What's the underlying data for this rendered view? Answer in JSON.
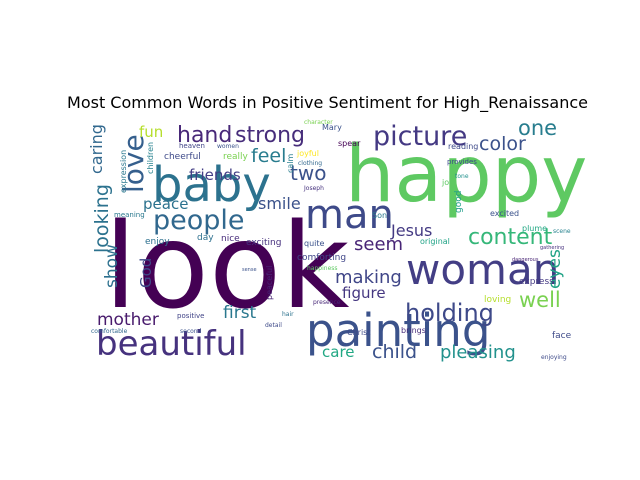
{
  "chart_data": {
    "type": "wordcloud",
    "title": "Most Common Words in Positive Sentiment for High_Renaissance",
    "background": "#ffffff",
    "colormap": "viridis",
    "words": [
      {
        "text": "look",
        "weight": 1.0,
        "color": "#440154"
      },
      {
        "text": "happy",
        "weight": 0.82,
        "color": "#5ec962"
      },
      {
        "text": "painting",
        "weight": 0.6,
        "color": "#3b528b"
      },
      {
        "text": "woman",
        "weight": 0.5,
        "color": "#433e85"
      },
      {
        "text": "baby",
        "weight": 0.5,
        "color": "#2c728e"
      },
      {
        "text": "beautiful",
        "weight": 0.45,
        "color": "#46327e"
      },
      {
        "text": "man",
        "weight": 0.42,
        "color": "#3e4a89"
      },
      {
        "text": "people",
        "weight": 0.33,
        "color": "#31688e"
      },
      {
        "text": "love",
        "weight": 0.3,
        "color": "#355f8d"
      },
      {
        "text": "picture",
        "weight": 0.3,
        "color": "#443983"
      },
      {
        "text": "content",
        "weight": 0.26,
        "color": "#35b779"
      },
      {
        "text": "holding",
        "weight": 0.25,
        "color": "#3e4989"
      },
      {
        "text": "hand",
        "weight": 0.24,
        "color": "#482878"
      },
      {
        "text": "strong",
        "weight": 0.24,
        "color": "#472d7b"
      },
      {
        "text": "one",
        "weight": 0.23,
        "color": "#287d8e"
      },
      {
        "text": "two",
        "weight": 0.21,
        "color": "#3b528b"
      },
      {
        "text": "feel",
        "weight": 0.2,
        "color": "#287c8e"
      },
      {
        "text": "well",
        "weight": 0.2,
        "color": "#7ad151"
      },
      {
        "text": "color",
        "weight": 0.2,
        "color": "#3b528b"
      },
      {
        "text": "looking",
        "weight": 0.2,
        "color": "#2c728e"
      },
      {
        "text": "child",
        "weight": 0.2,
        "color": "#3b528b"
      },
      {
        "text": "mother",
        "weight": 0.18,
        "color": "#481a6c"
      },
      {
        "text": "making",
        "weight": 0.18,
        "color": "#404688"
      },
      {
        "text": "seem",
        "weight": 0.18,
        "color": "#482576"
      },
      {
        "text": "pleasing",
        "weight": 0.18,
        "color": "#21918c"
      },
      {
        "text": "first",
        "weight": 0.17,
        "color": "#2a788e"
      },
      {
        "text": "figure",
        "weight": 0.16,
        "color": "#453781"
      },
      {
        "text": "show",
        "weight": 0.16,
        "color": "#2d708e"
      },
      {
        "text": "smile",
        "weight": 0.16,
        "color": "#3b528b"
      },
      {
        "text": "friends",
        "weight": 0.15,
        "color": "#433e85"
      },
      {
        "text": "Jesus",
        "weight": 0.15,
        "color": "#443a83"
      },
      {
        "text": "eyes",
        "weight": 0.15,
        "color": "#20a386"
      },
      {
        "text": "caring",
        "weight": 0.14,
        "color": "#31688e"
      },
      {
        "text": "God",
        "weight": 0.14,
        "color": "#3e4a89"
      },
      {
        "text": "fun",
        "weight": 0.14,
        "color": "#b5de2b"
      },
      {
        "text": "peace",
        "weight": 0.13,
        "color": "#2c728e"
      },
      {
        "text": "care",
        "weight": 0.13,
        "color": "#22a884"
      },
      {
        "text": "love",
        "weight": 0.0,
        "color": "#355f8d",
        "hidden": true
      },
      {
        "text": "comforting",
        "weight": 0.09,
        "color": "#404688"
      },
      {
        "text": "peaceful",
        "weight": 0.08,
        "color": "#482475"
      },
      {
        "text": "exciting",
        "weight": 0.08,
        "color": "#46307e"
      },
      {
        "text": "nice",
        "weight": 0.08,
        "color": "#472c7a"
      },
      {
        "text": "day",
        "weight": 0.08,
        "color": "#2d708e"
      },
      {
        "text": "quite",
        "weight": 0.07,
        "color": "#3b528b"
      },
      {
        "text": "calm",
        "weight": 0.07,
        "color": "#287d8e"
      },
      {
        "text": "good",
        "weight": 0.07,
        "color": "#1f9e89"
      },
      {
        "text": "joy",
        "weight": 0.07,
        "color": "#5ec962"
      },
      {
        "text": "loving",
        "weight": 0.07,
        "color": "#b5de2b"
      },
      {
        "text": "express",
        "weight": 0.07,
        "color": "#443983"
      },
      {
        "text": "face",
        "weight": 0.07,
        "color": "#3e4a89"
      },
      {
        "text": "enjoy",
        "weight": 0.07,
        "color": "#2d708e"
      },
      {
        "text": "Son",
        "weight": 0.06,
        "color": "#2a788e"
      },
      {
        "text": "excited",
        "weight": 0.06,
        "color": "#3b528b"
      },
      {
        "text": "original",
        "weight": 0.06,
        "color": "#20a386"
      },
      {
        "text": "cheerful",
        "weight": 0.06,
        "color": "#3e4a89"
      },
      {
        "text": "heaven",
        "weight": 0.06,
        "color": "#414487"
      },
      {
        "text": "children",
        "weight": 0.06,
        "color": "#26828e"
      },
      {
        "text": "expression",
        "weight": 0.06,
        "color": "#2a788e"
      },
      {
        "text": "really",
        "weight": 0.06,
        "color": "#7ad151"
      },
      {
        "text": "Mary",
        "weight": 0.06,
        "color": "#3b528b"
      },
      {
        "text": "joyful",
        "weight": 0.06,
        "color": "#fde725"
      },
      {
        "text": "reading",
        "weight": 0.06,
        "color": "#3e4a89"
      },
      {
        "text": "spear",
        "weight": 0.06,
        "color": "#440154"
      },
      {
        "text": "Christ",
        "weight": 0.05,
        "color": "#3e4989"
      },
      {
        "text": "brings",
        "weight": 0.05,
        "color": "#472d7b"
      },
      {
        "text": "plume",
        "weight": 0.05,
        "color": "#22a884"
      },
      {
        "text": "positive",
        "weight": 0.05,
        "color": "#414487"
      },
      {
        "text": "meaning",
        "weight": 0.05,
        "color": "#2a788e"
      },
      {
        "text": "provides",
        "weight": 0.05,
        "color": "#3e4a89"
      },
      {
        "text": "happiness",
        "weight": 0.04,
        "color": "#5ec962"
      },
      {
        "text": "presence",
        "weight": 0.04,
        "color": "#482878"
      },
      {
        "text": "tone",
        "weight": 0.04,
        "color": "#21918c"
      },
      {
        "text": "Joseph",
        "weight": 0.04,
        "color": "#46327e"
      },
      {
        "text": "women",
        "weight": 0.04,
        "color": "#3b528b"
      },
      {
        "text": "clothing",
        "weight": 0.04,
        "color": "#31688e"
      },
      {
        "text": "character",
        "weight": 0.04,
        "color": "#7ad151"
      },
      {
        "text": "comfortable",
        "weight": 0.04,
        "color": "#31688e"
      },
      {
        "text": "scene",
        "weight": 0.04,
        "color": "#26828e"
      },
      {
        "text": "second",
        "weight": 0.04,
        "color": "#3b528b"
      },
      {
        "text": "enjoying",
        "weight": 0.04,
        "color": "#3e4a89"
      },
      {
        "text": "dangerous",
        "weight": 0.04,
        "color": "#482475"
      },
      {
        "text": "gathering",
        "weight": 0.04,
        "color": "#46307e"
      },
      {
        "text": "sense",
        "weight": 0.04,
        "color": "#3b528b"
      },
      {
        "text": "hair",
        "weight": 0.04,
        "color": "#2c728e"
      },
      {
        "text": "detail",
        "weight": 0.04,
        "color": "#3e4a89"
      }
    ]
  }
}
